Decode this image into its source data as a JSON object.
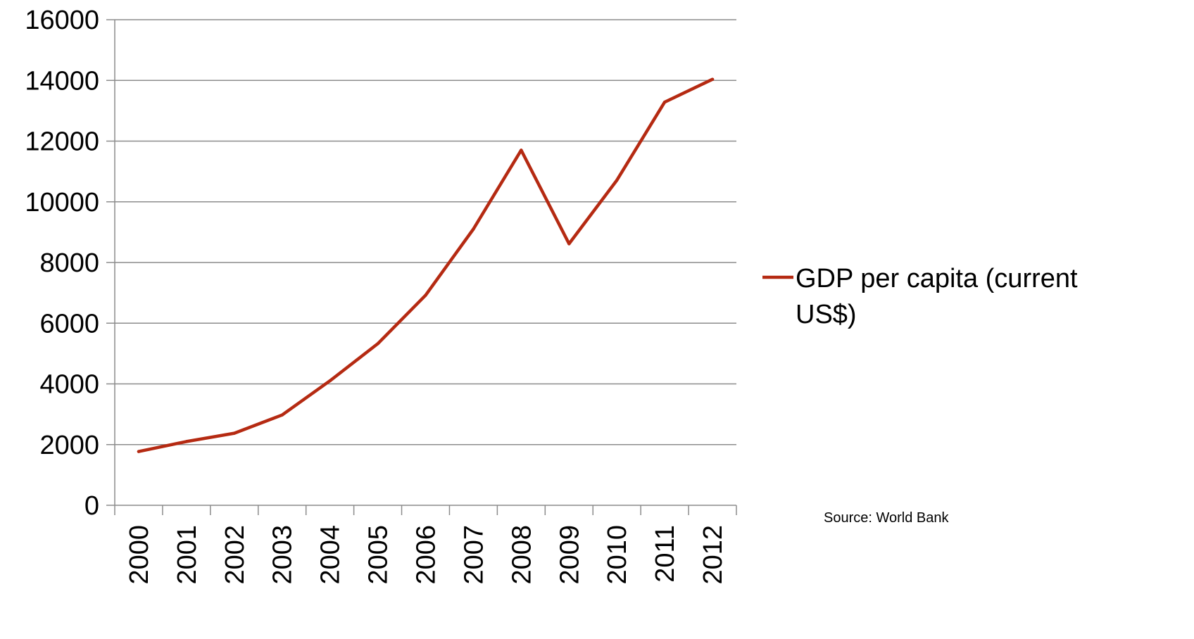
{
  "chart_data": {
    "type": "line",
    "title": "",
    "xlabel": "",
    "ylabel": "",
    "categories": [
      "2000",
      "2001",
      "2002",
      "2003",
      "2004",
      "2005",
      "2006",
      "2007",
      "2008",
      "2009",
      "2010",
      "2011",
      "2012"
    ],
    "series": [
      {
        "name": "GDP per capita (current US$)",
        "legend_lines": [
          "GDP per capita (current",
          "US$)"
        ],
        "color": "#b52a12",
        "values": [
          1771,
          2100,
          2375,
          2976,
          4102,
          5323,
          6920,
          9101,
          11700,
          8616,
          10710,
          13284,
          14037
        ]
      }
    ],
    "ylim": [
      0,
      16000
    ],
    "yticks": [
      "0",
      "2000",
      "4000",
      "6000",
      "8000",
      "10000",
      "12000",
      "14000",
      "16000"
    ],
    "grid": true,
    "legend_position": "right",
    "source": "Source: World Bank"
  },
  "colors": {
    "gridline": "#8c8c8c",
    "axis": "#8c8c8c",
    "series": "#b52a12"
  }
}
